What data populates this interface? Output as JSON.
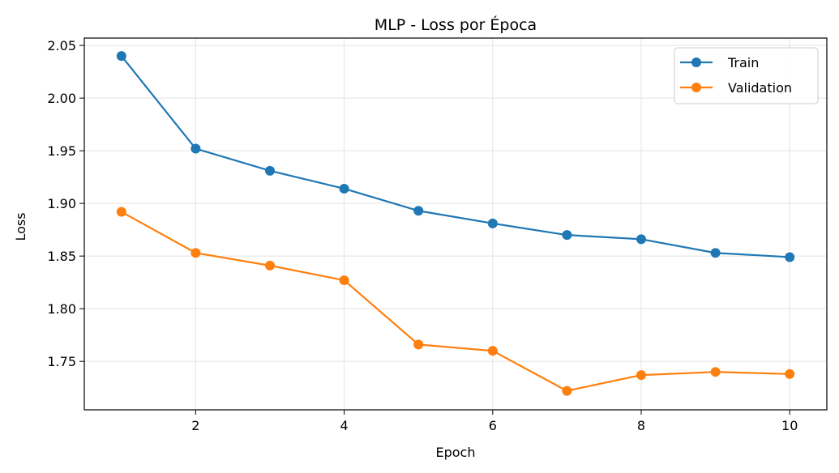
{
  "chart_data": {
    "type": "line",
    "title": "MLP - Loss por Época",
    "xlabel": "Epoch",
    "ylabel": "Loss",
    "x": [
      1,
      2,
      3,
      4,
      5,
      6,
      7,
      8,
      9,
      10
    ],
    "xticks": [
      2,
      4,
      6,
      8,
      10
    ],
    "yticks": [
      1.75,
      1.8,
      1.85,
      1.9,
      1.95,
      2.0,
      2.05
    ],
    "ytick_labels": [
      "1.75",
      "1.80",
      "1.85",
      "1.90",
      "1.95",
      "2.00",
      "2.05"
    ],
    "xlim": [
      0.5,
      10.5
    ],
    "ylim": [
      1.704,
      2.057
    ],
    "grid": true,
    "legend_position": "top-right",
    "series": [
      {
        "name": "Train",
        "color": "#1f77b4",
        "values": [
          2.04,
          1.952,
          1.931,
          1.914,
          1.893,
          1.881,
          1.87,
          1.866,
          1.853,
          1.849
        ]
      },
      {
        "name": "Validation",
        "color": "#ff7f0e",
        "values": [
          1.892,
          1.853,
          1.841,
          1.827,
          1.766,
          1.76,
          1.722,
          1.737,
          1.74,
          1.738
        ]
      }
    ]
  }
}
